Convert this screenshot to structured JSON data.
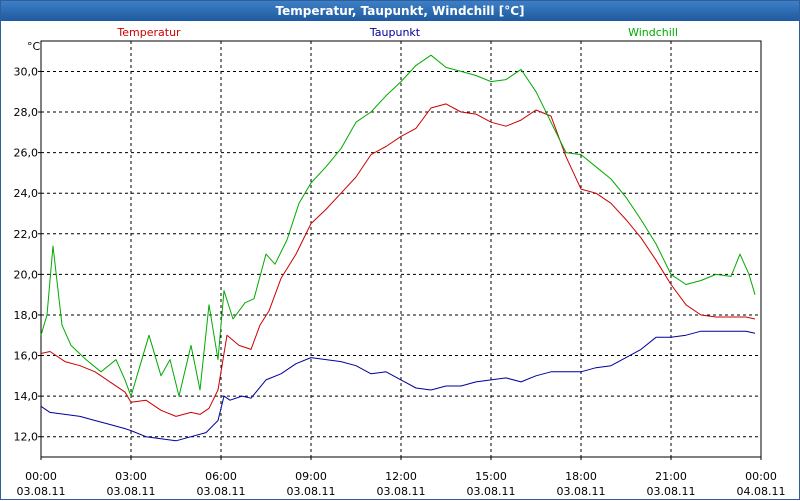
{
  "window": {
    "title": "Temperatur, Taupunkt, Windchill [°C]"
  },
  "chart_data": {
    "type": "line",
    "title": "Temperatur, Taupunkt, Windchill [°C]",
    "ylabel": "°C",
    "xlabel": "",
    "grid": true,
    "ylim": [
      11,
      31.5
    ],
    "yticks": [
      12,
      14,
      16,
      18,
      20,
      22,
      24,
      26,
      28,
      30
    ],
    "ytick_labels": [
      "12,0",
      "14,0",
      "16,0",
      "18,0",
      "20,0",
      "22,0",
      "24,0",
      "26,0",
      "28,0",
      "30,0"
    ],
    "xlim": [
      0,
      24
    ],
    "xticks": [
      {
        "h": 0,
        "time": "00:00",
        "date": "03.08.11"
      },
      {
        "h": 3,
        "time": "03:00",
        "date": "03.08.11"
      },
      {
        "h": 6,
        "time": "06:00",
        "date": "03.08.11"
      },
      {
        "h": 9,
        "time": "09:00",
        "date": "03.08.11"
      },
      {
        "h": 12,
        "time": "12:00",
        "date": "03.08.11"
      },
      {
        "h": 15,
        "time": "15:00",
        "date": "03.08.11"
      },
      {
        "h": 18,
        "time": "18:00",
        "date": "03.08.11"
      },
      {
        "h": 21,
        "time": "21:00",
        "date": "03.08.11"
      },
      {
        "h": 24,
        "time": "00:00",
        "date": "04.08.11"
      }
    ],
    "series": [
      {
        "name": "Temperatur",
        "color": "#cc0000",
        "x": [
          0,
          0.3,
          0.8,
          1.3,
          1.8,
          2.3,
          2.8,
          3.0,
          3.5,
          4.0,
          4.5,
          5.0,
          5.3,
          5.6,
          5.9,
          6.2,
          6.6,
          7.0,
          7.3,
          7.6,
          8.0,
          8.5,
          9.0,
          9.5,
          10.0,
          10.5,
          11.0,
          11.5,
          12.0,
          12.5,
          13.0,
          13.5,
          14.0,
          14.5,
          15.0,
          15.5,
          16.0,
          16.5,
          17.0,
          17.5,
          18.0,
          18.5,
          19.0,
          19.5,
          20.0,
          20.5,
          21.0,
          21.5,
          22.0,
          22.5,
          23.0,
          23.5,
          23.8
        ],
        "y": [
          16.1,
          16.2,
          15.7,
          15.5,
          15.2,
          14.7,
          14.2,
          13.7,
          13.8,
          13.3,
          13.0,
          13.2,
          13.1,
          13.4,
          14.3,
          17.0,
          16.5,
          16.3,
          17.5,
          18.2,
          19.8,
          21.0,
          22.5,
          23.2,
          24.0,
          24.8,
          25.9,
          26.3,
          26.8,
          27.2,
          28.2,
          28.4,
          28.0,
          27.9,
          27.5,
          27.3,
          27.6,
          28.1,
          27.8,
          25.8,
          24.2,
          24.0,
          23.5,
          22.7,
          21.8,
          20.7,
          19.5,
          18.5,
          18.0,
          17.9,
          17.9,
          17.9,
          17.8
        ]
      },
      {
        "name": "Taupunkt",
        "color": "#00009c",
        "x": [
          0,
          0.3,
          0.8,
          1.3,
          1.8,
          2.3,
          2.8,
          3.0,
          3.5,
          4.0,
          4.5,
          5.0,
          5.5,
          5.9,
          6.1,
          6.3,
          6.7,
          7.0,
          7.5,
          8.0,
          8.5,
          9.0,
          9.5,
          10.0,
          10.5,
          11.0,
          11.5,
          12.0,
          12.5,
          13.0,
          13.5,
          14.0,
          14.5,
          15.0,
          15.5,
          16.0,
          16.5,
          17.0,
          17.5,
          18.0,
          18.5,
          19.0,
          19.5,
          20.0,
          20.5,
          21.0,
          21.5,
          22.0,
          22.5,
          23.0,
          23.5,
          23.8
        ],
        "y": [
          13.5,
          13.2,
          13.1,
          13.0,
          12.8,
          12.6,
          12.4,
          12.3,
          12.0,
          11.9,
          11.8,
          12.0,
          12.2,
          12.8,
          14.0,
          13.8,
          14.0,
          13.9,
          14.8,
          15.1,
          15.6,
          15.9,
          15.8,
          15.7,
          15.5,
          15.1,
          15.2,
          14.8,
          14.4,
          14.3,
          14.5,
          14.5,
          14.7,
          14.8,
          14.9,
          14.7,
          15.0,
          15.2,
          15.2,
          15.2,
          15.4,
          15.5,
          15.9,
          16.3,
          16.9,
          16.9,
          17.0,
          17.2,
          17.2,
          17.2,
          17.2,
          17.1
        ]
      },
      {
        "name": "Windchill",
        "color": "#00aa00",
        "x": [
          0,
          0.2,
          0.4,
          0.7,
          1.0,
          1.5,
          2.0,
          2.5,
          2.8,
          3.0,
          3.3,
          3.6,
          4.0,
          4.3,
          4.6,
          5.0,
          5.3,
          5.6,
          5.9,
          6.1,
          6.4,
          6.8,
          7.1,
          7.5,
          7.8,
          8.2,
          8.6,
          9.0,
          9.5,
          10.0,
          10.5,
          11.0,
          11.5,
          12.0,
          12.5,
          13.0,
          13.5,
          14.0,
          14.5,
          15.0,
          15.5,
          16.0,
          16.5,
          17.0,
          17.5,
          18.0,
          18.5,
          19.0,
          19.5,
          20.0,
          20.5,
          21.0,
          21.5,
          22.0,
          22.5,
          23.0,
          23.3,
          23.6,
          23.8
        ],
        "y": [
          17.0,
          18.0,
          21.4,
          17.5,
          16.5,
          15.8,
          15.2,
          15.8,
          14.8,
          14.0,
          15.5,
          17.0,
          15.0,
          15.8,
          14.0,
          16.5,
          14.3,
          18.5,
          15.8,
          19.2,
          17.8,
          18.6,
          18.8,
          21.0,
          20.5,
          21.7,
          23.5,
          24.5,
          25.3,
          26.2,
          27.5,
          28.0,
          28.8,
          29.5,
          30.3,
          30.8,
          30.2,
          30.0,
          29.8,
          29.5,
          29.6,
          30.1,
          29.0,
          27.5,
          26.0,
          25.9,
          25.3,
          24.7,
          23.8,
          22.7,
          21.5,
          20.0,
          19.5,
          19.7,
          20.0,
          19.9,
          21.0,
          20.0,
          19.0
        ]
      }
    ]
  }
}
